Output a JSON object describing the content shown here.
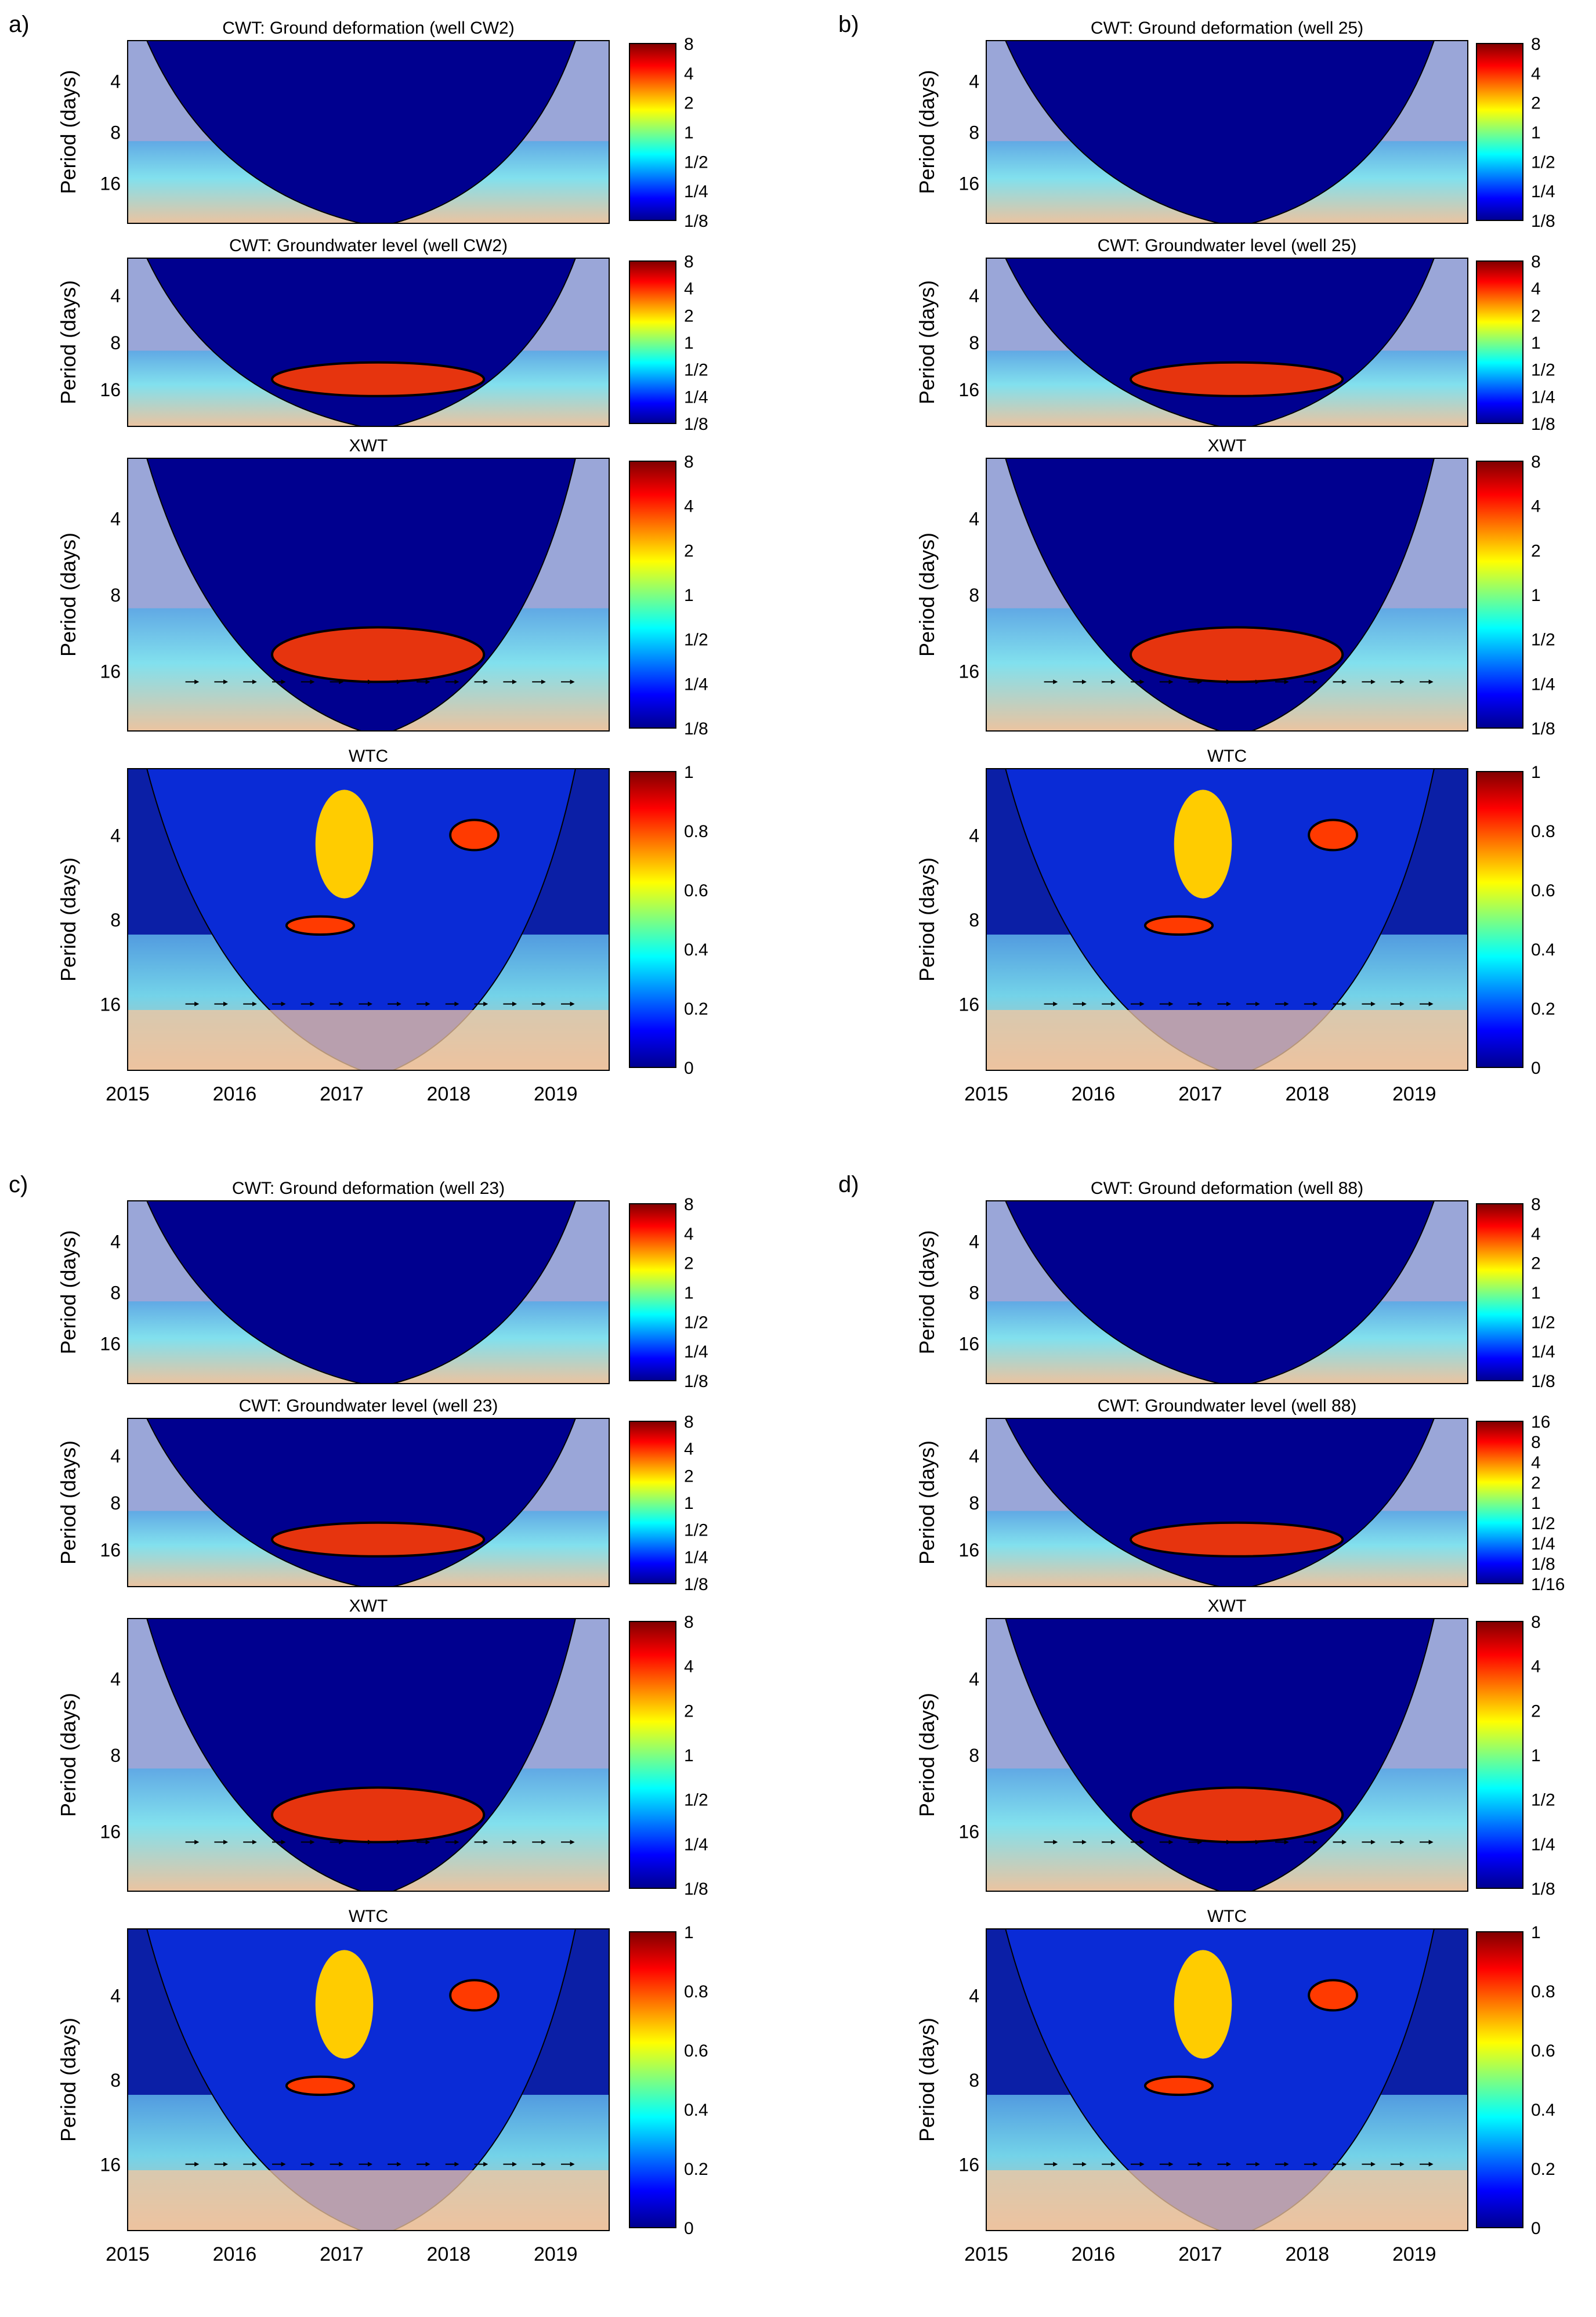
{
  "figure": {
    "ylabel": "Period (days)",
    "xticks": [
      "2015",
      "2016",
      "2017",
      "2018",
      "2019"
    ],
    "period_ticks": [
      "4",
      "8",
      "16"
    ],
    "power_cbar": [
      "8",
      "4",
      "2",
      "1",
      "1/2",
      "1/4",
      "1/8"
    ],
    "power_cbar_88": [
      "16",
      "8",
      "4",
      "2",
      "1",
      "1/2",
      "1/4",
      "1/8",
      "1/16"
    ],
    "coh_cbar": [
      "1",
      "0.8",
      "0.6",
      "0.4",
      "0.2",
      "0"
    ],
    "colors": {
      "cone": "#9aa3c8",
      "contour": "#000000",
      "sig_gray": "#808080"
    }
  },
  "chart_data": [
    {
      "id": "a",
      "label": "a)",
      "well": "CW2",
      "panels": [
        {
          "type": "heatmap",
          "title": "CWT: Ground deformation (well CW2)",
          "colorbar": "power"
        },
        {
          "type": "heatmap",
          "title": "CWT: Groundwater level (well CW2)",
          "colorbar": "power"
        },
        {
          "type": "heatmap",
          "title": "XWT",
          "colorbar": "power"
        },
        {
          "type": "heatmap",
          "title": "WTC",
          "colorbar": "coherence",
          "xaxis": [
            "2015",
            "2016",
            "2017",
            "2018",
            "2019"
          ],
          "xlim": [
            2015,
            2019.5
          ]
        }
      ]
    },
    {
      "id": "b",
      "label": "b)",
      "well": "25",
      "panels": [
        {
          "type": "heatmap",
          "title": "CWT: Ground deformation (well 25)",
          "colorbar": "power"
        },
        {
          "type": "heatmap",
          "title": "CWT: Groundwater level (well 25)",
          "colorbar": "power"
        },
        {
          "type": "heatmap",
          "title": "XWT",
          "colorbar": "power"
        },
        {
          "type": "heatmap",
          "title": "WTC",
          "colorbar": "coherence",
          "xaxis": [
            "2015",
            "2016",
            "2017",
            "2018",
            "2019"
          ],
          "xlim": [
            2015,
            2019.5
          ]
        }
      ]
    },
    {
      "id": "c",
      "label": "c)",
      "well": "23",
      "panels": [
        {
          "type": "heatmap",
          "title": "CWT: Ground deformation (well 23)",
          "colorbar": "power"
        },
        {
          "type": "heatmap",
          "title": "CWT: Groundwater level (well 23)",
          "colorbar": "power"
        },
        {
          "type": "heatmap",
          "title": "XWT",
          "colorbar": "power"
        },
        {
          "type": "heatmap",
          "title": "WTC",
          "colorbar": "coherence",
          "xaxis": [
            "2015",
            "2016",
            "2017",
            "2018",
            "2019"
          ],
          "xlim": [
            2015,
            2019.5
          ]
        }
      ]
    },
    {
      "id": "d",
      "label": "d)",
      "well": "88",
      "panels": [
        {
          "type": "heatmap",
          "title": "CWT: Ground deformation (well 88)",
          "colorbar": "power"
        },
        {
          "type": "heatmap",
          "title": "CWT: Groundwater level (well 88)",
          "colorbar": "power88"
        },
        {
          "type": "heatmap",
          "title": "XWT",
          "colorbar": "power"
        },
        {
          "type": "heatmap",
          "title": "WTC",
          "colorbar": "coherence",
          "xaxis": [
            "2015",
            "2016",
            "2017",
            "2018",
            "2019"
          ],
          "xlim": [
            2015,
            2019.5
          ]
        }
      ]
    }
  ]
}
